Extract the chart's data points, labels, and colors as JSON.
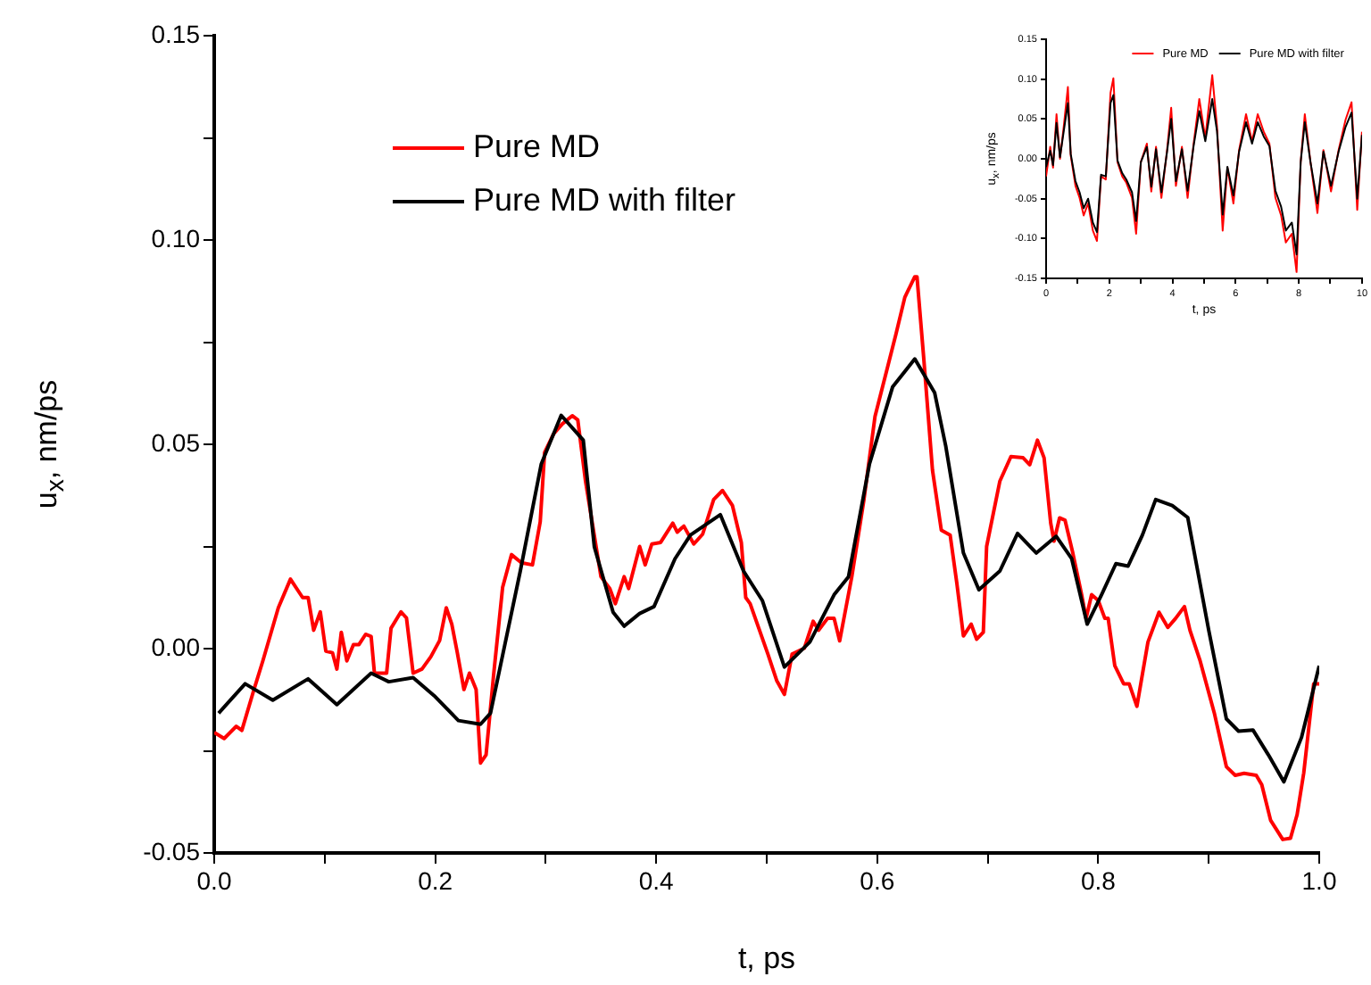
{
  "chart_data": [
    {
      "type": "line",
      "xlabel": "t, ps",
      "ylabel": "u$_{x}$, nm/ps",
      "legend": "top left",
      "marker": "none",
      "line_style": "solid",
      "grid": false,
      "xlim": [
        0,
        1
      ],
      "ylim": [
        -0.05,
        0.15
      ],
      "xticks": [
        {
          "value": 0,
          "label": "0.0"
        },
        {
          "value": 0.1,
          "label": null
        },
        {
          "value": 0.2,
          "label": "0.2"
        },
        {
          "value": 0.3,
          "label": null
        },
        {
          "value": 0.4,
          "label": "0.4"
        },
        {
          "value": 0.5,
          "label": null
        },
        {
          "value": 0.6,
          "label": "0.6"
        },
        {
          "value": 0.7,
          "label": null
        },
        {
          "value": 0.8,
          "label": "0.8"
        },
        {
          "value": 0.9,
          "label": null
        },
        {
          "value": 1,
          "label": "1.0"
        }
      ],
      "yticks": [
        {
          "value": -0.05,
          "label": "-0.05"
        },
        {
          "value": -0.025,
          "label": null
        },
        {
          "value": 0,
          "label": "0.00"
        },
        {
          "value": 0.025,
          "label": null
        },
        {
          "value": 0.05,
          "label": "0.05"
        },
        {
          "value": 0.075,
          "label": null
        },
        {
          "value": 0.1,
          "label": "0.10"
        },
        {
          "value": 0.125,
          "label": null
        },
        {
          "value": 0.15,
          "label": "0.15"
        }
      ],
      "series": [
        {
          "name": "Pure MD",
          "color": "#ff0000",
          "x": [
            0,
            0.009,
            0.02,
            0.025,
            0.036,
            0.044,
            0.058,
            0.069,
            0.08,
            0.085,
            0.09,
            0.096,
            0.101,
            0.107,
            0.111,
            0.115,
            0.12,
            0.126,
            0.131,
            0.137,
            0.142,
            0.145,
            0.156,
            0.16,
            0.169,
            0.174,
            0.18,
            0.188,
            0.196,
            0.204,
            0.21,
            0.215,
            0.22,
            0.226,
            0.231,
            0.237,
            0.241,
            0.246,
            0.253,
            0.261,
            0.269,
            0.278,
            0.288,
            0.295,
            0.299,
            0.307,
            0.315,
            0.324,
            0.329,
            0.336,
            0.35,
            0.358,
            0.363,
            0.371,
            0.375,
            0.385,
            0.39,
            0.396,
            0.404,
            0.415,
            0.419,
            0.425,
            0.434,
            0.442,
            0.452,
            0.46,
            0.469,
            0.477,
            0.481,
            0.485,
            0.501,
            0.509,
            0.516,
            0.523,
            0.534,
            0.542,
            0.547,
            0.555,
            0.561,
            0.566,
            0.577,
            0.588,
            0.598,
            0.609,
            0.617,
            0.625,
            0.634,
            0.636,
            0.642,
            0.65,
            0.658,
            0.666,
            0.672,
            0.678,
            0.685,
            0.69,
            0.696,
            0.699,
            0.711,
            0.721,
            0.732,
            0.738,
            0.745,
            0.751,
            0.757,
            0.76,
            0.765,
            0.77,
            0.777,
            0.785,
            0.789,
            0.794,
            0.8,
            0.806,
            0.809,
            0.815,
            0.823,
            0.828,
            0.835,
            0.845,
            0.855,
            0.863,
            0.87,
            0.878,
            0.883,
            0.892,
            0.905,
            0.916,
            0.924,
            0.932,
            0.943,
            0.948,
            0.956,
            0.967,
            0.974,
            0.98,
            0.986,
            0.995,
            1
          ],
          "values": [
            -0.0205,
            -0.022,
            -0.019,
            -0.02,
            -0.01,
            -0.003,
            0.01,
            0.017,
            0.0125,
            0.0125,
            0.0045,
            0.009,
            -0.0006,
            -0.001,
            -0.005,
            0.004,
            -0.003,
            0.001,
            0.001,
            0.0035,
            0.003,
            -0.006,
            -0.006,
            0.005,
            0.009,
            0.0075,
            -0.006,
            -0.005,
            -0.002,
            0.002,
            0.01,
            0.006,
            -0.001,
            -0.01,
            -0.006,
            -0.01,
            -0.028,
            -0.026,
            -0.006,
            0.015,
            0.023,
            0.021,
            0.0205,
            0.031,
            0.048,
            0.0525,
            0.055,
            0.057,
            0.056,
            0.041,
            0.0176,
            0.0147,
            0.011,
            0.0176,
            0.0147,
            0.025,
            0.0205,
            0.0256,
            0.026,
            0.0307,
            0.0285,
            0.03,
            0.0256,
            0.028,
            0.0365,
            0.0387,
            0.035,
            0.026,
            0.0125,
            0.011,
            -0.0013,
            -0.0078,
            -0.0112,
            -0.0013,
            0.0001,
            0.0067,
            0.0045,
            0.0074,
            0.0074,
            0.0019,
            0.0176,
            0.0365,
            0.0568,
            0.0685,
            0.077,
            0.086,
            0.091,
            0.091,
            0.0714,
            0.0437,
            0.029,
            0.0278,
            0.0161,
            0.0031,
            0.006,
            0.0023,
            0.004,
            0.025,
            0.041,
            0.047,
            0.0467,
            0.045,
            0.051,
            0.0467,
            0.0307,
            0.0263,
            0.032,
            0.0314,
            0.0234,
            0.0132,
            0.0074,
            0.0132,
            0.0118,
            0.0074,
            0.0074,
            -0.0042,
            -0.0086,
            -0.0086,
            -0.0141,
            0.0016,
            0.0089,
            0.0052,
            0.0074,
            0.0103,
            0.0045,
            -0.0028,
            -0.0157,
            -0.0289,
            -0.031,
            -0.0305,
            -0.031,
            -0.0333,
            -0.042,
            -0.0467,
            -0.0464,
            -0.0406,
            -0.0304,
            -0.0086,
            -0.0086
          ]
        },
        {
          "name": "Pure MD with filter",
          "color": "#000000",
          "x": [
            0.004,
            0.028,
            0.053,
            0.085,
            0.111,
            0.142,
            0.158,
            0.18,
            0.199,
            0.221,
            0.241,
            0.25,
            0.277,
            0.296,
            0.314,
            0.334,
            0.344,
            0.361,
            0.371,
            0.385,
            0.398,
            0.417,
            0.431,
            0.458,
            0.479,
            0.496,
            0.516,
            0.539,
            0.561,
            0.574,
            0.593,
            0.614,
            0.634,
            0.652,
            0.662,
            0.678,
            0.692,
            0.711,
            0.727,
            0.744,
            0.762,
            0.776,
            0.79,
            0.803,
            0.816,
            0.827,
            0.84,
            0.852,
            0.867,
            0.881,
            0.9,
            0.916,
            0.927,
            0.94,
            0.954,
            0.968,
            0.984,
            1
          ],
          "values": [
            -0.0158,
            -0.0086,
            -0.0126,
            -0.0074,
            -0.0137,
            -0.006,
            -0.0081,
            -0.0071,
            -0.0115,
            -0.0176,
            -0.0185,
            -0.0158,
            0.019,
            0.0452,
            0.0571,
            0.051,
            0.0249,
            0.0089,
            0.0055,
            0.0086,
            0.0103,
            0.022,
            0.0278,
            0.0328,
            0.019,
            0.0118,
            -0.0045,
            0.0016,
            0.0132,
            0.0176,
            0.0452,
            0.0641,
            0.0709,
            0.0626,
            0.0496,
            0.0234,
            0.0144,
            0.019,
            0.0282,
            0.0234,
            0.0275,
            0.022,
            0.006,
            0.0132,
            0.0208,
            0.0202,
            0.0278,
            0.0365,
            0.035,
            0.0321,
            0.0045,
            -0.0172,
            -0.0202,
            -0.0199,
            -0.026,
            -0.0326,
            -0.0217,
            -0.0042
          ]
        }
      ]
    },
    {
      "type": "line",
      "xlabel": "t, ps",
      "ylabel": "u$_{x}$, nm/ps",
      "legend": "top right",
      "marker": "none",
      "line_style": "solid",
      "grid": false,
      "xlim": [
        0,
        10
      ],
      "ylim": [
        -0.15,
        0.15
      ],
      "xticks": [
        0,
        {
          "value": 1,
          "label": null
        },
        2,
        {
          "value": 3,
          "label": null
        },
        4,
        {
          "value": 5,
          "label": null
        },
        6,
        {
          "value": 7,
          "label": null
        },
        8,
        {
          "value": 9,
          "label": null
        },
        10
      ],
      "yticks": [
        {
          "value": -0.15,
          "label": "-0.15"
        },
        {
          "value": -0.1,
          "label": "-0.10"
        },
        {
          "value": -0.05,
          "label": "-0.05"
        },
        {
          "value": 0,
          "label": "0.00"
        },
        {
          "value": 0.05,
          "label": "0.05"
        },
        {
          "value": 0.1,
          "label": "0.10"
        },
        {
          "value": 0.15,
          "label": "0.15"
        }
      ],
      "x": [
        0,
        0.13,
        0.22,
        0.33,
        0.44,
        0.56,
        0.69,
        0.78,
        0.93,
        1.06,
        1.19,
        1.33,
        1.48,
        1.61,
        1.74,
        1.89,
        2.04,
        2.13,
        2.26,
        2.41,
        2.54,
        2.72,
        2.85,
        3.0,
        3.19,
        3.33,
        3.48,
        3.65,
        3.83,
        3.96,
        4.11,
        4.3,
        4.48,
        4.67,
        4.85,
        5.04,
        5.26,
        5.41,
        5.59,
        5.74,
        5.93,
        6.11,
        6.33,
        6.52,
        6.7,
        6.89,
        7.07,
        7.26,
        7.44,
        7.59,
        7.78,
        7.93,
        8.06,
        8.19,
        8.37,
        8.59,
        8.78,
        9.02,
        9.26,
        9.48,
        9.67,
        9.85,
        10
      ],
      "series": [
        {
          "name": "Pure MD",
          "color": "#ff0000",
          "values": [
            -0.022,
            0.015,
            -0.011,
            0.056,
            0,
            0.041,
            0.09,
            0.004,
            -0.034,
            -0.049,
            -0.071,
            -0.056,
            -0.09,
            -0.103,
            -0.022,
            -0.026,
            0.083,
            0.101,
            -0.004,
            -0.022,
            -0.03,
            -0.049,
            -0.094,
            -0.004,
            0.019,
            -0.041,
            0.015,
            -0.049,
            0.011,
            0.064,
            -0.034,
            0.015,
            -0.049,
            0.019,
            0.075,
            0.026,
            0.105,
            0.041,
            -0.09,
            -0.011,
            -0.056,
            0.011,
            0.056,
            0.022,
            0.056,
            0.034,
            0.019,
            -0.049,
            -0.071,
            -0.105,
            -0.094,
            -0.142,
            -0.004,
            0.056,
            -0.004,
            -0.068,
            0.011,
            -0.041,
            0.011,
            0.049,
            0.071,
            -0.064,
            0.034
          ]
        },
        {
          "name": "Pure MD with filter",
          "color": "#000000",
          "values": [
            -0.01,
            0.01,
            -0.008,
            0.045,
            0.002,
            0.035,
            0.07,
            0.006,
            -0.028,
            -0.042,
            -0.062,
            -0.05,
            -0.08,
            -0.092,
            -0.02,
            -0.022,
            0.07,
            0.08,
            -0.002,
            -0.018,
            -0.026,
            -0.042,
            -0.078,
            -0.004,
            0.015,
            -0.035,
            0.012,
            -0.042,
            0.009,
            0.05,
            -0.028,
            0.012,
            -0.04,
            0.016,
            0.06,
            0.022,
            0.075,
            0.035,
            -0.07,
            -0.01,
            -0.046,
            0.009,
            0.046,
            0.019,
            0.046,
            0.028,
            0.016,
            -0.04,
            -0.06,
            -0.09,
            -0.08,
            -0.12,
            -0.004,
            0.046,
            -0.004,
            -0.056,
            0.009,
            -0.034,
            0.009,
            0.04,
            0.058,
            -0.05,
            0.03
          ]
        }
      ]
    }
  ]
}
